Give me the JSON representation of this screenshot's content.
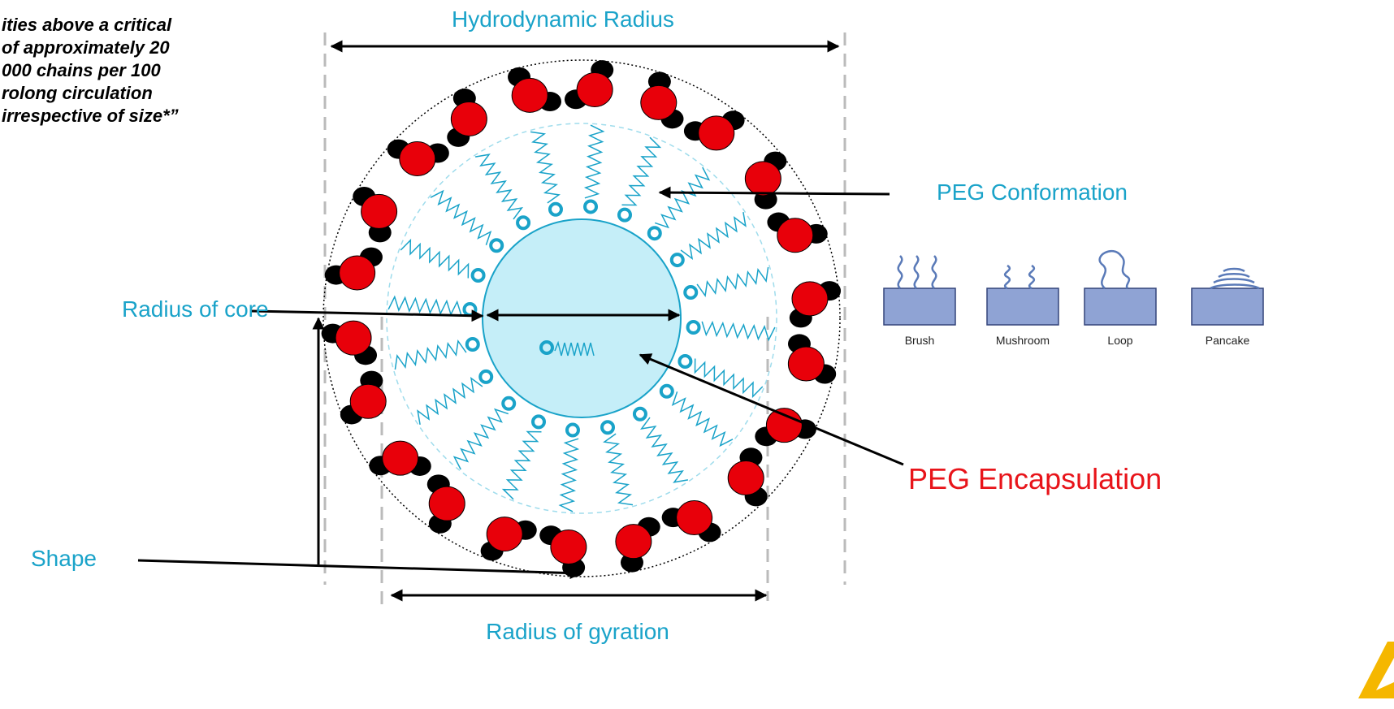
{
  "quote": {
    "lines": [
      "ities above a critical",
      "of approximately 20",
      "000 chains per 100",
      "rolong circulation",
      "irrespective of size*”"
    ]
  },
  "labels": {
    "hydrodynamic_radius": "Hydrodynamic Radius",
    "radius_of_core": "Radius of core",
    "shape": "Shape",
    "radius_of_gyration": "Radius of gyration",
    "peg_conformation": "PEG Conformation",
    "peg_encapsulation": "PEG Encapsulation"
  },
  "conformations": [
    "Brush",
    "Mushroom",
    "Loop",
    "Pancake"
  ]
}
